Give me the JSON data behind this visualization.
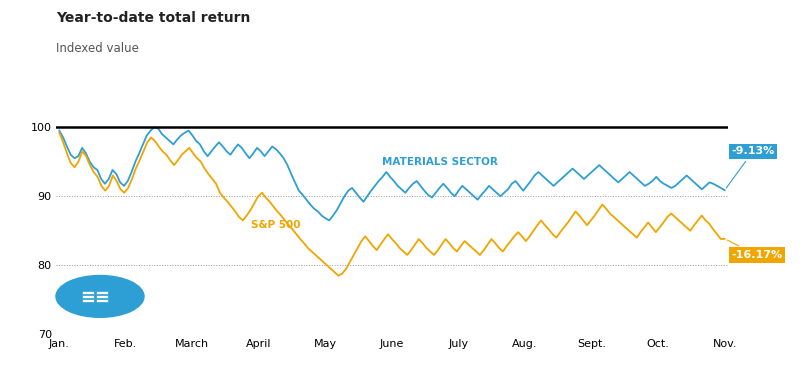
{
  "title": "Year-to-date total return",
  "subtitle": "Indexed value",
  "ylim": [
    70,
    103
  ],
  "yticks": [
    70,
    80,
    90,
    100
  ],
  "month_labels": [
    "Jan.",
    "Feb.",
    "March",
    "April",
    "May",
    "June",
    "July",
    "Aug.",
    "Sept.",
    "Oct.",
    "Nov."
  ],
  "materials_label": "MATERIALS SECTOR",
  "sp500_label": "S&P 500",
  "materials_color": "#2e9fd4",
  "sp500_color": "#f0a500",
  "materials_end_value": "-9.13%",
  "sp500_end_value": "-16.17%",
  "annotation_bg_materials": "#2e9fd4",
  "annotation_bg_sp500": "#f0a500",
  "annotation_text_color": "#ffffff",
  "title_fontsize": 10,
  "subtitle_fontsize": 8.5,
  "axis_label_fontsize": 8,
  "line_label_fontsize": 7.5,
  "annotation_fontsize": 8,
  "circle_color": "#2e9fd4",
  "background_color": "#ffffff",
  "grid_color": "#999999",
  "hline_color": "#000000",
  "materials_data": [
    99.5,
    98.5,
    97.2,
    96.0,
    95.5,
    95.8,
    97.0,
    96.2,
    95.0,
    94.2,
    93.8,
    92.5,
    91.8,
    92.5,
    93.8,
    93.2,
    92.0,
    91.5,
    92.2,
    93.5,
    95.0,
    96.2,
    97.5,
    98.8,
    99.5,
    100.0,
    99.8,
    99.0,
    98.5,
    98.0,
    97.5,
    98.2,
    98.8,
    99.2,
    99.5,
    98.8,
    98.0,
    97.5,
    96.5,
    95.8,
    96.5,
    97.2,
    97.8,
    97.2,
    96.5,
    96.0,
    96.8,
    97.5,
    97.0,
    96.2,
    95.5,
    96.2,
    97.0,
    96.5,
    95.8,
    96.5,
    97.2,
    96.8,
    96.2,
    95.5,
    94.5,
    93.2,
    92.0,
    90.8,
    90.2,
    89.5,
    88.8,
    88.2,
    87.8,
    87.2,
    86.8,
    86.5,
    87.2,
    88.0,
    89.0,
    90.0,
    90.8,
    91.2,
    90.5,
    89.8,
    89.2,
    90.0,
    90.8,
    91.5,
    92.2,
    92.8,
    93.5,
    92.8,
    92.2,
    91.5,
    91.0,
    90.5,
    91.2,
    91.8,
    92.2,
    91.5,
    90.8,
    90.2,
    89.8,
    90.5,
    91.2,
    91.8,
    91.2,
    90.5,
    90.0,
    90.8,
    91.5,
    91.0,
    90.5,
    90.0,
    89.5,
    90.2,
    90.8,
    91.5,
    91.0,
    90.5,
    90.0,
    90.5,
    91.0,
    91.8,
    92.2,
    91.5,
    90.8,
    91.5,
    92.2,
    93.0,
    93.5,
    93.0,
    92.5,
    92.0,
    91.5,
    92.0,
    92.5,
    93.0,
    93.5,
    94.0,
    93.5,
    93.0,
    92.5,
    93.0,
    93.5,
    94.0,
    94.5,
    94.0,
    93.5,
    93.0,
    92.5,
    92.0,
    92.5,
    93.0,
    93.5,
    93.0,
    92.5,
    92.0,
    91.5,
    91.8,
    92.2,
    92.8,
    92.2,
    91.8,
    91.5,
    91.2,
    91.5,
    92.0,
    92.5,
    93.0,
    92.5,
    92.0,
    91.5,
    91.0,
    91.5,
    92.0,
    91.8,
    91.5,
    91.2,
    90.87
  ],
  "sp500_data": [
    99.2,
    97.8,
    96.2,
    94.8,
    94.2,
    95.0,
    96.5,
    95.8,
    94.5,
    93.5,
    92.8,
    91.5,
    90.8,
    91.5,
    93.0,
    92.2,
    91.0,
    90.5,
    91.2,
    92.5,
    94.0,
    95.2,
    96.5,
    97.8,
    98.5,
    98.0,
    97.2,
    96.5,
    96.0,
    95.2,
    94.5,
    95.2,
    96.0,
    96.5,
    97.0,
    96.2,
    95.5,
    95.0,
    94.0,
    93.2,
    92.5,
    91.8,
    90.5,
    89.8,
    89.2,
    88.5,
    87.8,
    87.0,
    86.5,
    87.2,
    88.0,
    89.0,
    90.0,
    90.5,
    89.8,
    89.2,
    88.5,
    87.8,
    87.2,
    86.5,
    85.8,
    85.2,
    84.5,
    83.8,
    83.2,
    82.5,
    82.0,
    81.5,
    81.0,
    80.5,
    80.0,
    79.5,
    79.0,
    78.5,
    78.8,
    79.5,
    80.5,
    81.5,
    82.5,
    83.5,
    84.2,
    83.5,
    82.8,
    82.2,
    83.0,
    83.8,
    84.5,
    83.8,
    83.2,
    82.5,
    82.0,
    81.5,
    82.2,
    83.0,
    83.8,
    83.2,
    82.5,
    82.0,
    81.5,
    82.2,
    83.0,
    83.8,
    83.2,
    82.5,
    82.0,
    82.8,
    83.5,
    83.0,
    82.5,
    82.0,
    81.5,
    82.2,
    83.0,
    83.8,
    83.2,
    82.5,
    82.0,
    82.8,
    83.5,
    84.2,
    84.8,
    84.2,
    83.5,
    84.2,
    85.0,
    85.8,
    86.5,
    85.8,
    85.2,
    84.5,
    84.0,
    84.8,
    85.5,
    86.2,
    87.0,
    87.8,
    87.2,
    86.5,
    85.8,
    86.5,
    87.2,
    88.0,
    88.8,
    88.2,
    87.5,
    87.0,
    86.5,
    86.0,
    85.5,
    85.0,
    84.5,
    84.0,
    84.8,
    85.5,
    86.2,
    85.5,
    84.8,
    85.5,
    86.2,
    87.0,
    87.5,
    87.0,
    86.5,
    86.0,
    85.5,
    85.0,
    85.8,
    86.5,
    87.2,
    86.5,
    86.0,
    85.2,
    84.5,
    83.8,
    83.83
  ]
}
